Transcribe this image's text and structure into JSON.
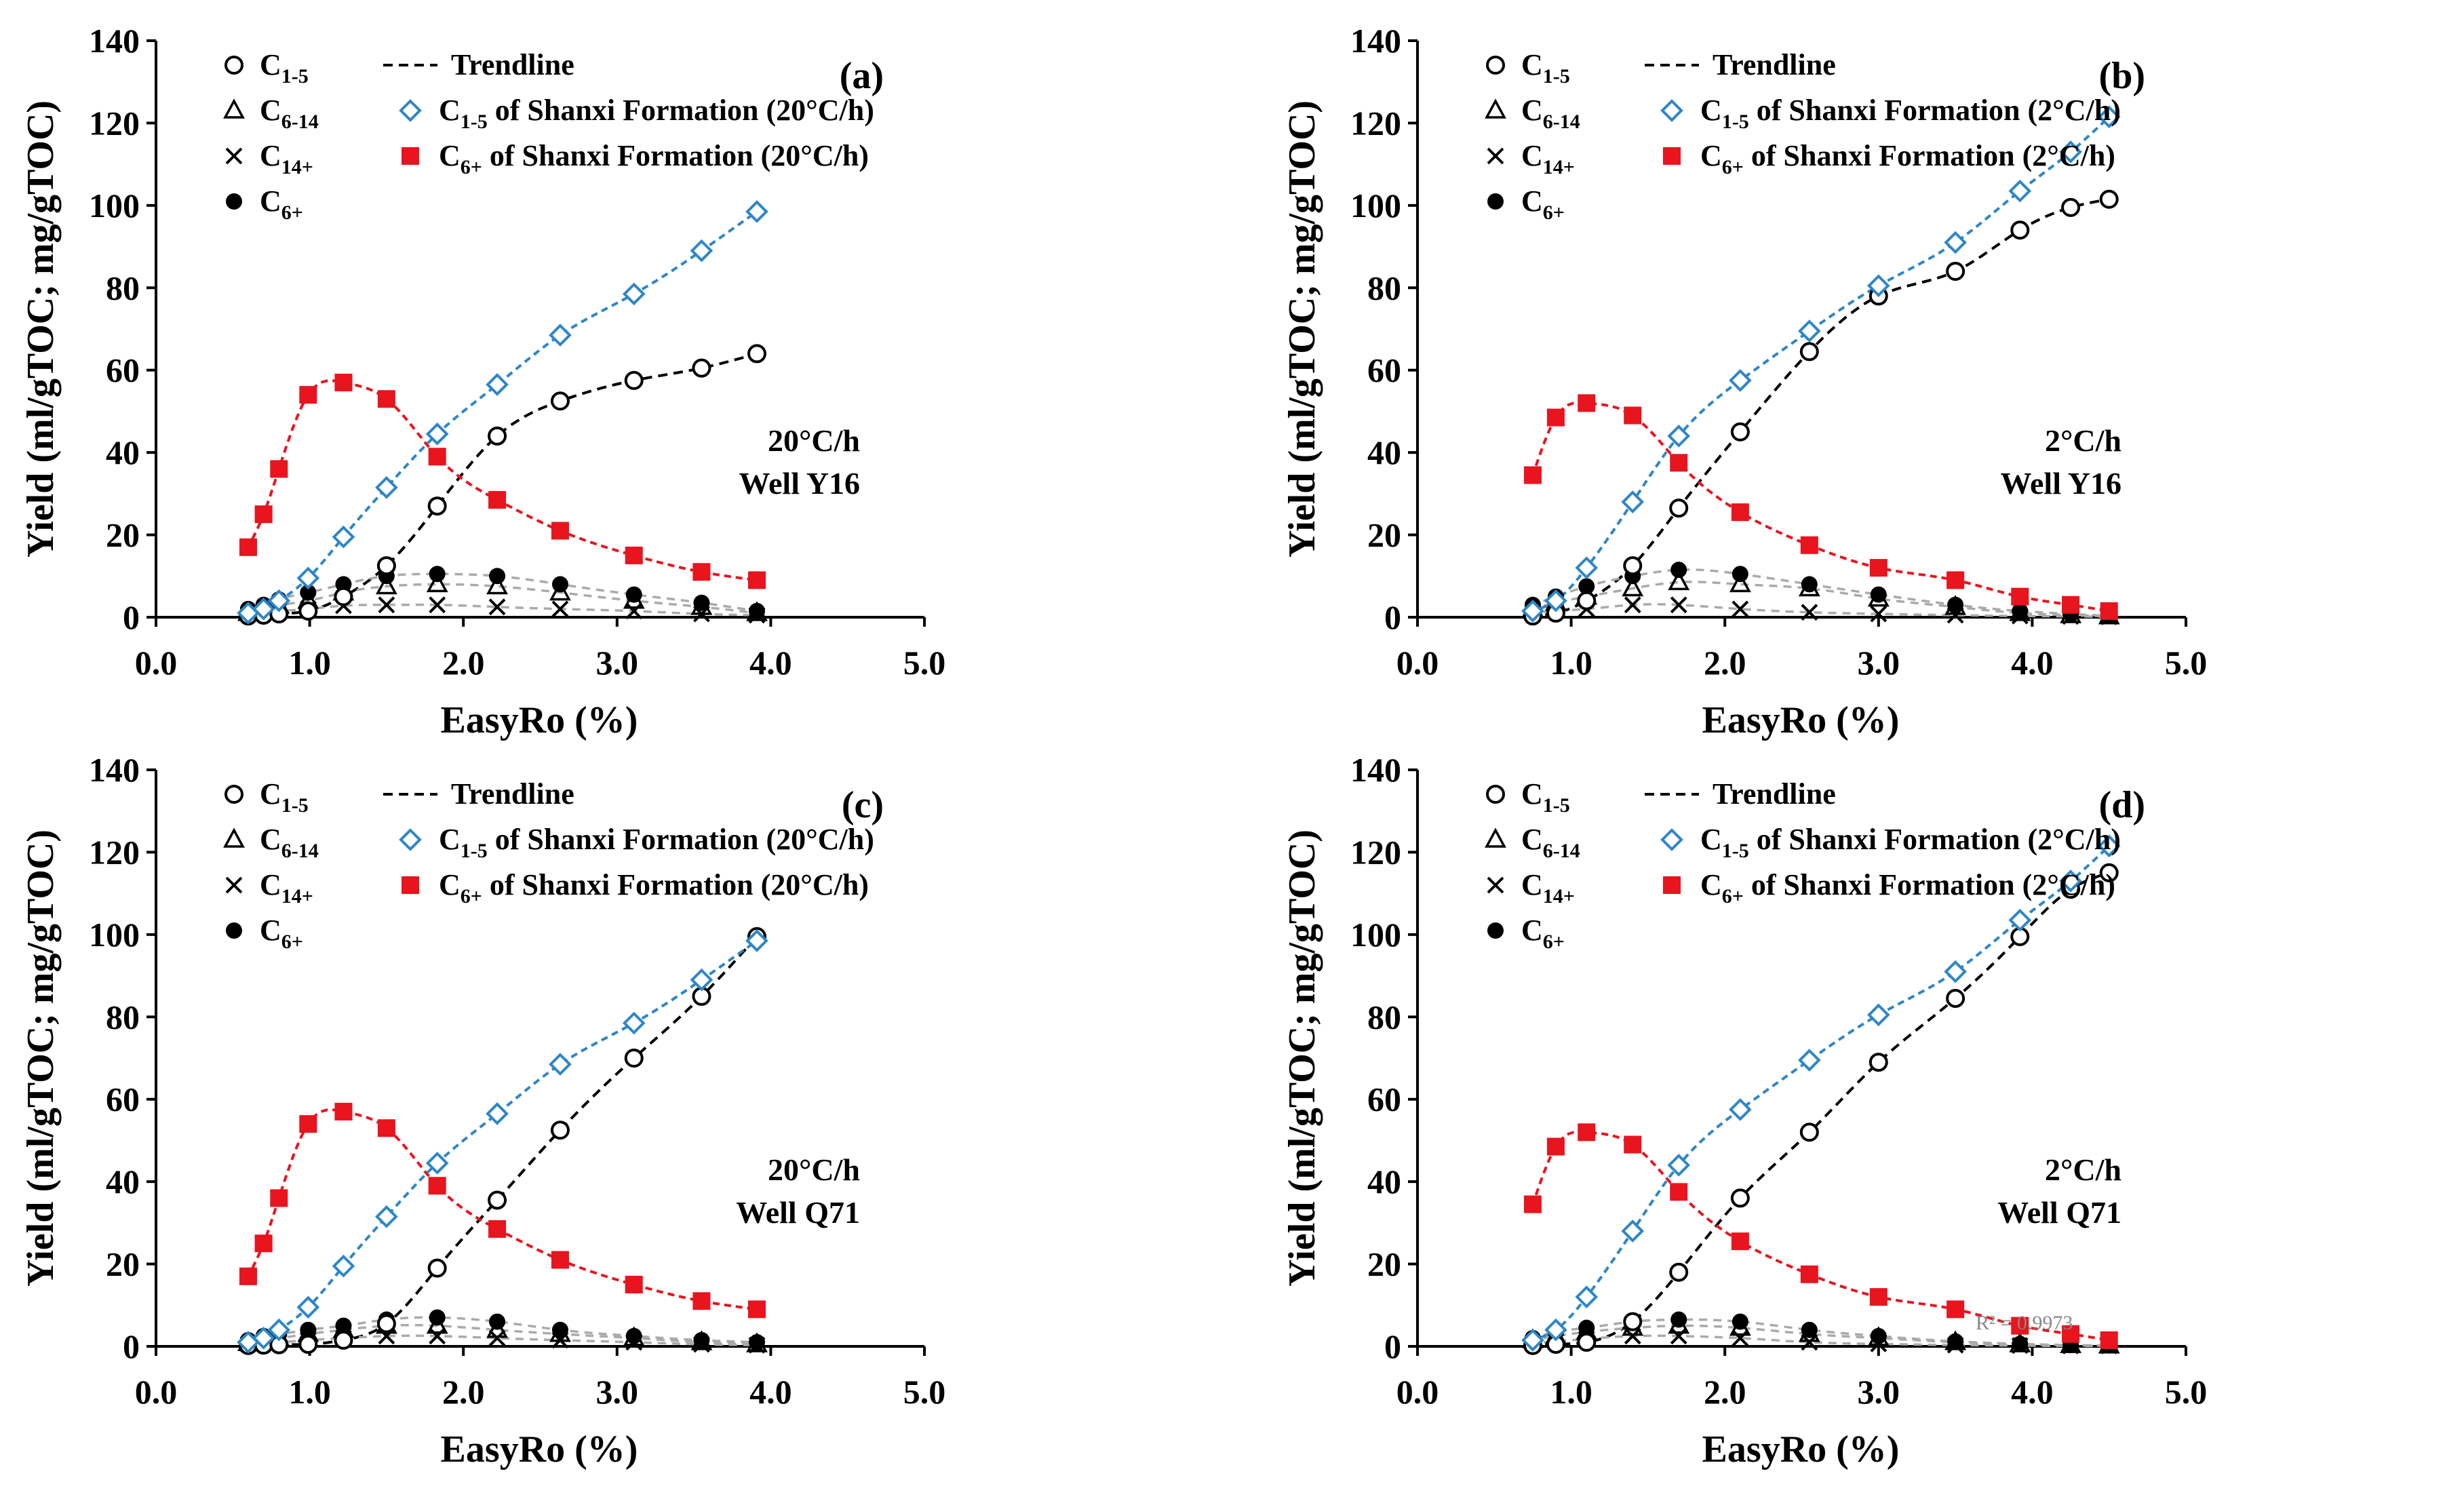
{
  "colors": {
    "trend": "#000000",
    "minor": "#aaaaaa",
    "c15_shanxi": "#2e86c8",
    "c6_shanxi": "#e8141e"
  },
  "legend": {
    "c": "C",
    "sub_c15": "1-5",
    "sub_c614": "6-14",
    "sub_c14": "14+",
    "sub_c6": "6+",
    "trendline": "Trendline",
    "shanxi_suffix": " of Shanxi Formation"
  },
  "chart_data": [
    {
      "type": "scatter",
      "panel": "(a)",
      "rate": "20°C/h",
      "well": "Well Y16",
      "rate_paren": "(20°C/h)",
      "xlabel": "EasyRo (%)",
      "ylabel": "Yield (ml/gTOC; mg/gTOC)",
      "xlim": [
        0,
        5
      ],
      "ylim": [
        0,
        140
      ],
      "xticks": [
        "0.0",
        "1.0",
        "2.0",
        "3.0",
        "4.0",
        "5.0"
      ],
      "yticks": [
        "0",
        "20",
        "40",
        "60",
        "80",
        "100",
        "120",
        "140"
      ],
      "r2": "",
      "series": [
        {
          "name": "C1-5",
          "marker": "circle-open",
          "fit": "trend",
          "x": [
            0.6,
            0.7,
            0.8,
            0.99,
            1.22,
            1.5,
            1.83,
            2.22,
            2.63,
            3.11,
            3.55,
            3.91
          ],
          "y": [
            0.3,
            0.5,
            0.8,
            1.5,
            5.0,
            12.5,
            27,
            44,
            52.5,
            57.5,
            60.5,
            64
          ]
        },
        {
          "name": "C6-14",
          "marker": "triangle-open",
          "fit": "minor",
          "x": [
            0.6,
            0.7,
            0.8,
            0.99,
            1.22,
            1.5,
            1.83,
            2.22,
            2.63,
            3.11,
            3.55,
            3.91
          ],
          "y": [
            1.0,
            1.8,
            2.8,
            4.0,
            6.0,
            7.5,
            8.0,
            7.5,
            6.0,
            4.0,
            2.5,
            1.0
          ]
        },
        {
          "name": "C14+",
          "marker": "x",
          "fit": "minor",
          "x": [
            0.6,
            0.7,
            0.8,
            0.99,
            1.22,
            1.5,
            1.83,
            2.22,
            2.63,
            3.11,
            3.55,
            3.91
          ],
          "y": [
            0.8,
            1.2,
            1.5,
            2.0,
            2.8,
            3.0,
            3.0,
            2.5,
            2.0,
            1.5,
            0.8,
            0.5
          ]
        },
        {
          "name": "C6+",
          "marker": "circle-filled",
          "fit": "minor",
          "x": [
            0.6,
            0.7,
            0.8,
            0.99,
            1.22,
            1.5,
            1.83,
            2.22,
            2.63,
            3.11,
            3.55,
            3.91
          ],
          "y": [
            2.0,
            3.0,
            4.3,
            6.0,
            8.0,
            10.0,
            10.5,
            10.0,
            8.0,
            5.5,
            3.5,
            1.5
          ]
        },
        {
          "name": "C1-5 of Shanxi Formation (20°C/h)",
          "marker": "diamond-open",
          "fit": "c15_shanxi",
          "x": [
            0.6,
            0.7,
            0.8,
            0.99,
            1.22,
            1.5,
            1.83,
            2.22,
            2.63,
            3.11,
            3.55,
            3.91
          ],
          "y": [
            1.0,
            2.0,
            4.0,
            9.5,
            19.5,
            31.5,
            44.5,
            56.5,
            68.5,
            78.5,
            89,
            98.5
          ]
        },
        {
          "name": "C6+ of Shanxi Formation (20°C/h)",
          "marker": "square-filled",
          "fit": "c6_shanxi",
          "x": [
            0.6,
            0.7,
            0.8,
            0.99,
            1.22,
            1.5,
            1.83,
            2.22,
            2.63,
            3.11,
            3.55,
            3.91
          ],
          "y": [
            17,
            25,
            36,
            54,
            57,
            53,
            39,
            28.5,
            21,
            15,
            11,
            9
          ]
        }
      ]
    },
    {
      "type": "scatter",
      "panel": "(b)",
      "rate": "2°C/h",
      "well": "Well Y16",
      "rate_paren": "(2°C/h)",
      "xlabel": "EasyRo (%)",
      "ylabel": "Yield (ml/gTOC; mg/gTOC)",
      "xlim": [
        0,
        5
      ],
      "ylim": [
        0,
        140
      ],
      "xticks": [
        "0.0",
        "1.0",
        "2.0",
        "3.0",
        "4.0",
        "5.0"
      ],
      "yticks": [
        "0",
        "20",
        "40",
        "60",
        "80",
        "100",
        "120",
        "140"
      ],
      "r2": "",
      "series": [
        {
          "name": "C1-5",
          "marker": "circle-open",
          "fit": "trend",
          "x": [
            0.75,
            0.9,
            1.1,
            1.4,
            1.7,
            2.1,
            2.55,
            3.0,
            3.5,
            3.92,
            4.25,
            4.5
          ],
          "y": [
            0.3,
            1.0,
            4.0,
            12.5,
            26.5,
            45,
            64.5,
            78,
            84,
            94,
            99.5,
            101.5
          ]
        },
        {
          "name": "C6-14",
          "marker": "triangle-open",
          "fit": "minor",
          "x": [
            0.75,
            0.9,
            1.1,
            1.4,
            1.7,
            2.1,
            2.55,
            3.0,
            3.5,
            3.92,
            4.25,
            4.5
          ],
          "y": [
            2.0,
            3.5,
            5.0,
            7.0,
            8.5,
            8.0,
            7.0,
            4.5,
            2.5,
            1.0,
            0.5,
            0.2
          ]
        },
        {
          "name": "C14+",
          "marker": "x",
          "fit": "minor",
          "x": [
            0.75,
            0.9,
            1.1,
            1.4,
            1.7,
            2.1,
            2.55,
            3.0,
            3.5,
            3.92,
            4.25,
            4.5
          ],
          "y": [
            1.0,
            1.5,
            2.0,
            3.0,
            3.0,
            2.0,
            1.2,
            0.8,
            0.5,
            0.3,
            0.2,
            0.1
          ]
        },
        {
          "name": "C6+",
          "marker": "circle-filled",
          "fit": "minor",
          "x": [
            0.75,
            0.9,
            1.1,
            1.4,
            1.7,
            2.1,
            2.55,
            3.0,
            3.5,
            3.92,
            4.25,
            4.5
          ],
          "y": [
            3.0,
            5.0,
            7.5,
            10.0,
            11.5,
            10.5,
            8.0,
            5.5,
            3.0,
            1.5,
            0.8,
            0.3
          ]
        },
        {
          "name": "C1-5 of Shanxi Formation (2°C/h)",
          "marker": "diamond-open",
          "fit": "c15_shanxi",
          "x": [
            0.75,
            0.9,
            1.1,
            1.4,
            1.7,
            2.1,
            2.55,
            3.0,
            3.5,
            3.92,
            4.25,
            4.5
          ],
          "y": [
            1.5,
            4.0,
            12,
            28,
            44,
            57.5,
            69.5,
            80.5,
            91,
            103.5,
            113,
            121.5
          ]
        },
        {
          "name": "C6+ of Shanxi Formation (2°C/h)",
          "marker": "square-filled",
          "fit": "c6_shanxi",
          "x": [
            0.75,
            0.9,
            1.1,
            1.4,
            1.7,
            2.1,
            2.55,
            3.0,
            3.5,
            3.92,
            4.25,
            4.5
          ],
          "y": [
            34.5,
            48.5,
            52,
            49,
            37.5,
            25.5,
            17.5,
            12,
            9,
            5,
            3,
            1.5
          ]
        }
      ]
    },
    {
      "type": "scatter",
      "panel": "(c)",
      "rate": "20°C/h",
      "well": "Well Q71",
      "rate_paren": "(20°C/h)",
      "xlabel": "EasyRo (%)",
      "ylabel": "Yield (ml/gTOC; mg/gTOC)",
      "xlim": [
        0,
        5
      ],
      "ylim": [
        0,
        140
      ],
      "xticks": [
        "0.0",
        "1.0",
        "2.0",
        "3.0",
        "4.0",
        "5.0"
      ],
      "yticks": [
        "0",
        "20",
        "40",
        "60",
        "80",
        "100",
        "120",
        "140"
      ],
      "r2": "",
      "series": [
        {
          "name": "C1-5",
          "marker": "circle-open",
          "fit": "trend",
          "x": [
            0.6,
            0.7,
            0.8,
            0.99,
            1.22,
            1.5,
            1.83,
            2.22,
            2.63,
            3.11,
            3.55,
            3.91
          ],
          "y": [
            0.2,
            0.3,
            0.4,
            0.5,
            1.5,
            5.5,
            19,
            35.5,
            52.5,
            70,
            85,
            99.5
          ]
        },
        {
          "name": "C6-14",
          "marker": "triangle-open",
          "fit": "minor",
          "x": [
            0.6,
            0.7,
            0.8,
            0.99,
            1.22,
            1.5,
            1.83,
            2.22,
            2.63,
            3.11,
            3.55,
            3.91
          ],
          "y": [
            0.8,
            1.5,
            2.0,
            3.0,
            4.0,
            5.0,
            5.0,
            4.0,
            3.0,
            2.0,
            1.0,
            0.5
          ]
        },
        {
          "name": "C14+",
          "marker": "x",
          "fit": "minor",
          "x": [
            0.6,
            0.7,
            0.8,
            0.99,
            1.22,
            1.5,
            1.83,
            2.22,
            2.63,
            3.11,
            3.55,
            3.91
          ],
          "y": [
            0.5,
            0.8,
            1.0,
            1.5,
            2.0,
            2.5,
            2.5,
            2.0,
            1.5,
            1.0,
            0.5,
            0.3
          ]
        },
        {
          "name": "C6+",
          "marker": "circle-filled",
          "fit": "minor",
          "x": [
            0.6,
            0.7,
            0.8,
            0.99,
            1.22,
            1.5,
            1.83,
            2.22,
            2.63,
            3.11,
            3.55,
            3.91
          ],
          "y": [
            1.5,
            2.5,
            3.0,
            4.0,
            5.0,
            6.5,
            7.0,
            6.0,
            4.0,
            2.5,
            1.5,
            1.0
          ]
        },
        {
          "name": "C1-5 of Shanxi Formation (20°C/h)",
          "marker": "diamond-open",
          "fit": "c15_shanxi",
          "x": [
            0.6,
            0.7,
            0.8,
            0.99,
            1.22,
            1.5,
            1.83,
            2.22,
            2.63,
            3.11,
            3.55,
            3.91
          ],
          "y": [
            1.0,
            2.0,
            4.0,
            9.5,
            19.5,
            31.5,
            44.5,
            56.5,
            68.5,
            78.5,
            89,
            98.5
          ]
        },
        {
          "name": "C6+ of Shanxi Formation (20°C/h)",
          "marker": "square-filled",
          "fit": "c6_shanxi",
          "x": [
            0.6,
            0.7,
            0.8,
            0.99,
            1.22,
            1.5,
            1.83,
            2.22,
            2.63,
            3.11,
            3.55,
            3.91
          ],
          "y": [
            17,
            25,
            36,
            54,
            57,
            53,
            39,
            28.5,
            21,
            15,
            11,
            9
          ]
        }
      ]
    },
    {
      "type": "scatter",
      "panel": "(d)",
      "rate": "2°C/h",
      "well": "Well Q71",
      "rate_paren": "(2°C/h)",
      "xlabel": "EasyRo (%)",
      "ylabel": "Yield (ml/gTOC; mg/gTOC)",
      "xlim": [
        0,
        5
      ],
      "ylim": [
        0,
        140
      ],
      "xticks": [
        "0.0",
        "1.0",
        "2.0",
        "3.0",
        "4.0",
        "5.0"
      ],
      "yticks": [
        "0",
        "20",
        "40",
        "60",
        "80",
        "100",
        "120",
        "140"
      ],
      "r2": "R² = 0.9973",
      "series": [
        {
          "name": "C1-5",
          "marker": "circle-open",
          "fit": "trend",
          "x": [
            0.75,
            0.9,
            1.1,
            1.4,
            1.7,
            2.1,
            2.55,
            3.0,
            3.5,
            3.92,
            4.25,
            4.5
          ],
          "y": [
            0.2,
            0.5,
            1.0,
            6.0,
            18,
            36,
            52,
            69,
            84.5,
            99.5,
            111,
            115
          ]
        },
        {
          "name": "C6-14",
          "marker": "triangle-open",
          "fit": "minor",
          "x": [
            0.75,
            0.9,
            1.1,
            1.4,
            1.7,
            2.1,
            2.55,
            3.0,
            3.5,
            3.92,
            4.25,
            4.5
          ],
          "y": [
            1.5,
            2.5,
            3.5,
            4.5,
            5.0,
            4.5,
            3.0,
            2.0,
            1.0,
            0.5,
            0.3,
            0.2
          ]
        },
        {
          "name": "C14+",
          "marker": "x",
          "fit": "minor",
          "x": [
            0.75,
            0.9,
            1.1,
            1.4,
            1.7,
            2.1,
            2.55,
            3.0,
            3.5,
            3.92,
            4.25,
            4.5
          ],
          "y": [
            0.8,
            1.2,
            1.8,
            2.5,
            2.5,
            2.0,
            1.0,
            0.6,
            0.3,
            0.2,
            0.1,
            0.1
          ]
        },
        {
          "name": "C6+",
          "marker": "circle-filled",
          "fit": "minor",
          "x": [
            0.75,
            0.9,
            1.1,
            1.4,
            1.7,
            2.1,
            2.55,
            3.0,
            3.5,
            3.92,
            4.25,
            4.5
          ],
          "y": [
            2.0,
            3.5,
            4.5,
            6.0,
            6.5,
            6.0,
            4.0,
            2.5,
            1.2,
            0.6,
            0.3,
            0.2
          ]
        },
        {
          "name": "C1-5 of Shanxi Formation (2°C/h)",
          "marker": "diamond-open",
          "fit": "c15_shanxi",
          "x": [
            0.75,
            0.9,
            1.1,
            1.4,
            1.7,
            2.1,
            2.55,
            3.0,
            3.5,
            3.92,
            4.25,
            4.5
          ],
          "y": [
            1.5,
            4.0,
            12,
            28,
            44,
            57.5,
            69.5,
            80.5,
            91,
            103.5,
            113,
            121.5
          ]
        },
        {
          "name": "C6+ of Shanxi Formation (2°C/h)",
          "marker": "square-filled",
          "fit": "c6_shanxi",
          "x": [
            0.75,
            0.9,
            1.1,
            1.4,
            1.7,
            2.1,
            2.55,
            3.0,
            3.5,
            3.92,
            4.25,
            4.5
          ],
          "y": [
            34.5,
            48.5,
            52,
            49,
            37.5,
            25.5,
            17.5,
            12,
            9,
            5,
            3,
            1.5
          ]
        }
      ]
    }
  ]
}
